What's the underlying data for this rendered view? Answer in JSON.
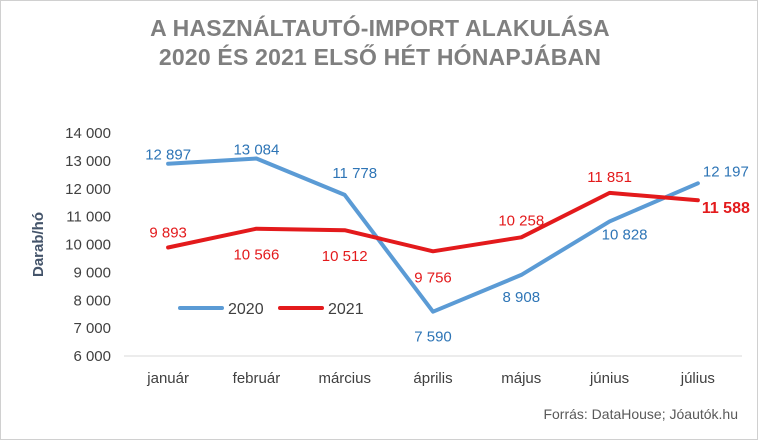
{
  "title_line1": "A HASZNÁLTAUTÓ-IMPORT ALAKULÁSA",
  "title_line2": "2020 ÉS 2021 ELSŐ HÉT HÓNAPJÁBAN",
  "source": "Forrás: DataHouse; Jóautók.hu",
  "chart_data": {
    "type": "line",
    "ylabel": "Darab/hó",
    "ylim": [
      6000,
      14000
    ],
    "y_ticks": [
      6000,
      7000,
      8000,
      9000,
      10000,
      11000,
      12000,
      13000,
      14000
    ],
    "y_tick_labels": [
      "6 000",
      "7 000",
      "8 000",
      "9 000",
      "10 000",
      "11 000",
      "12 000",
      "13 000",
      "14 000"
    ],
    "categories": [
      "január",
      "február",
      "március",
      "április",
      "május",
      "június",
      "július"
    ],
    "grid": false,
    "legend": "bottom-left",
    "series": [
      {
        "name": "2020",
        "color": "#5b9bd5",
        "values": [
          12897,
          13084,
          11778,
          7590,
          8908,
          10828,
          12197
        ],
        "labels": [
          "12 897",
          "13 084",
          "11 778",
          "7 590",
          "8 908",
          "10 828",
          "12 197"
        ]
      },
      {
        "name": "2021",
        "color": "#e31a1c",
        "values": [
          9893,
          10566,
          10512,
          9756,
          10258,
          11851,
          11588
        ],
        "labels": [
          "9 893",
          "10 566",
          "10 512",
          "9 756",
          "10 258",
          "11 851",
          "11 588"
        ]
      }
    ]
  }
}
